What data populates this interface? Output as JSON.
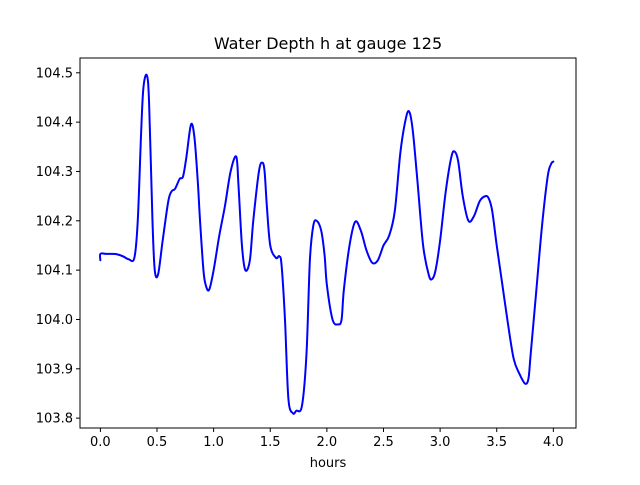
{
  "chart_data": {
    "type": "line",
    "title": "Water Depth h at gauge 125",
    "xlabel": "hours",
    "ylabel": "",
    "xlim": [
      -0.18,
      4.2
    ],
    "ylim": [
      103.78,
      104.53
    ],
    "xticks": [
      0.0,
      0.5,
      1.0,
      1.5,
      2.0,
      2.5,
      3.0,
      3.5,
      4.0
    ],
    "xtick_labels": [
      "0.0",
      "0.5",
      "1.0",
      "1.5",
      "2.0",
      "2.5",
      "3.0",
      "3.5",
      "4.0"
    ],
    "yticks": [
      103.8,
      103.9,
      104.0,
      104.1,
      104.2,
      104.3,
      104.4,
      104.5
    ],
    "ytick_labels": [
      "103.8",
      "103.9",
      "104.0",
      "104.1",
      "104.2",
      "104.3",
      "104.4",
      "104.5"
    ],
    "grid": false,
    "legend": "none",
    "series": [
      {
        "color": "#0000ff",
        "x": [
          0.0,
          0.0,
          0.05,
          0.1,
          0.15,
          0.2,
          0.25,
          0.3,
          0.33,
          0.36,
          0.38,
          0.41,
          0.43,
          0.46,
          0.48,
          0.51,
          0.55,
          0.6,
          0.63,
          0.66,
          0.7,
          0.73,
          0.76,
          0.8,
          0.83,
          0.86,
          0.88,
          0.91,
          0.93,
          0.96,
          1.0,
          1.05,
          1.1,
          1.15,
          1.2,
          1.22,
          1.25,
          1.28,
          1.32,
          1.35,
          1.4,
          1.43,
          1.45,
          1.47,
          1.5,
          1.55,
          1.58,
          1.6,
          1.63,
          1.66,
          1.7,
          1.73,
          1.78,
          1.82,
          1.85,
          1.88,
          1.91,
          1.95,
          1.98,
          2.0,
          2.05,
          2.1,
          2.13,
          2.15,
          2.2,
          2.25,
          2.3,
          2.35,
          2.4,
          2.45,
          2.5,
          2.55,
          2.6,
          2.65,
          2.7,
          2.73,
          2.76,
          2.8,
          2.85,
          2.9,
          2.93,
          2.96,
          3.0,
          3.05,
          3.1,
          3.13,
          3.16,
          3.2,
          3.25,
          3.3,
          3.35,
          3.4,
          3.43,
          3.46,
          3.5,
          3.55,
          3.6,
          3.65,
          3.7,
          3.75,
          3.78,
          3.8,
          3.85,
          3.9,
          3.95,
          3.98,
          4.0
        ],
        "y": [
          104.12,
          104.133,
          104.133,
          104.133,
          104.132,
          104.128,
          104.122,
          104.125,
          104.2,
          104.38,
          104.47,
          104.495,
          104.44,
          104.2,
          104.1,
          104.092,
          104.16,
          104.24,
          104.26,
          104.265,
          104.285,
          104.29,
          104.33,
          104.395,
          104.37,
          104.28,
          104.2,
          104.1,
          104.07,
          104.06,
          104.1,
          104.17,
          104.23,
          104.3,
          104.33,
          104.27,
          104.15,
          104.1,
          104.12,
          104.2,
          104.3,
          104.318,
          104.3,
          104.23,
          104.15,
          104.125,
          104.128,
          104.11,
          104.0,
          103.84,
          103.81,
          103.815,
          103.825,
          103.93,
          104.12,
          104.19,
          104.2,
          104.18,
          104.13,
          104.07,
          104.0,
          103.99,
          104.0,
          104.06,
          104.15,
          104.198,
          104.18,
          104.14,
          104.115,
          104.12,
          104.15,
          104.17,
          104.22,
          104.34,
          104.41,
          104.42,
          104.38,
          104.28,
          104.15,
          104.09,
          104.082,
          104.1,
          104.16,
          104.26,
          104.33,
          104.34,
          104.32,
          104.25,
          104.2,
          104.21,
          104.24,
          104.25,
          104.245,
          104.22,
          104.15,
          104.07,
          103.99,
          103.92,
          103.89,
          103.87,
          103.88,
          103.93,
          104.06,
          104.19,
          104.29,
          104.315,
          104.32
        ]
      }
    ]
  }
}
